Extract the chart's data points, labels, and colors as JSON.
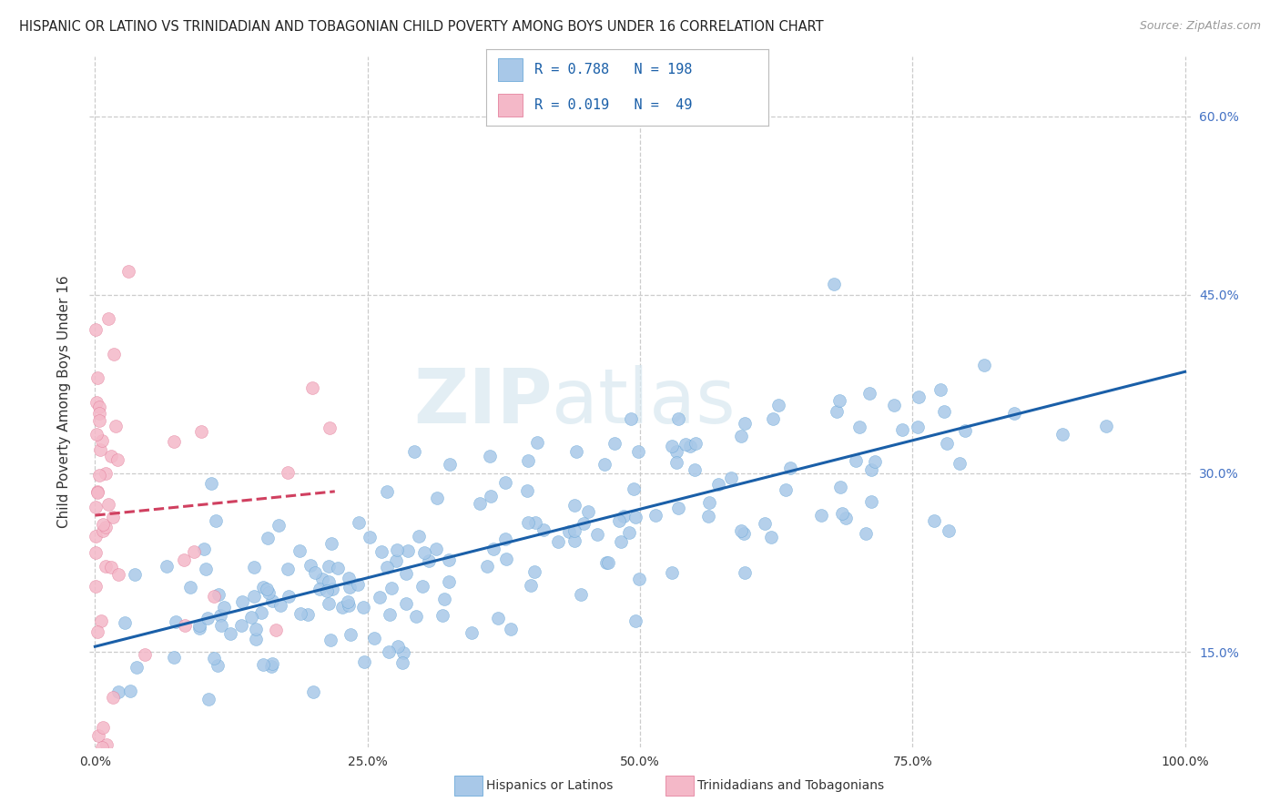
{
  "title": "HISPANIC OR LATINO VS TRINIDADIAN AND TOBAGONIAN CHILD POVERTY AMONG BOYS UNDER 16 CORRELATION CHART",
  "source": "Source: ZipAtlas.com",
  "ylabel": "Child Poverty Among Boys Under 16",
  "R_blue": 0.788,
  "N_blue": 198,
  "R_pink": 0.019,
  "N_pink": 49,
  "blue_color": "#a8c8e8",
  "blue_edge_color": "#5a9fd4",
  "pink_color": "#f4b8c8",
  "pink_edge_color": "#e07090",
  "blue_line_color": "#1a5fa8",
  "pink_line_color": "#d04060",
  "ytick_color": "#4472c4",
  "xtick_color": "#333333",
  "watermark_zip": "ZIP",
  "watermark_atlas": "atlas",
  "legend_label_blue": "Hispanics or Latinos",
  "legend_label_pink": "Trinidadians and Tobagonians"
}
